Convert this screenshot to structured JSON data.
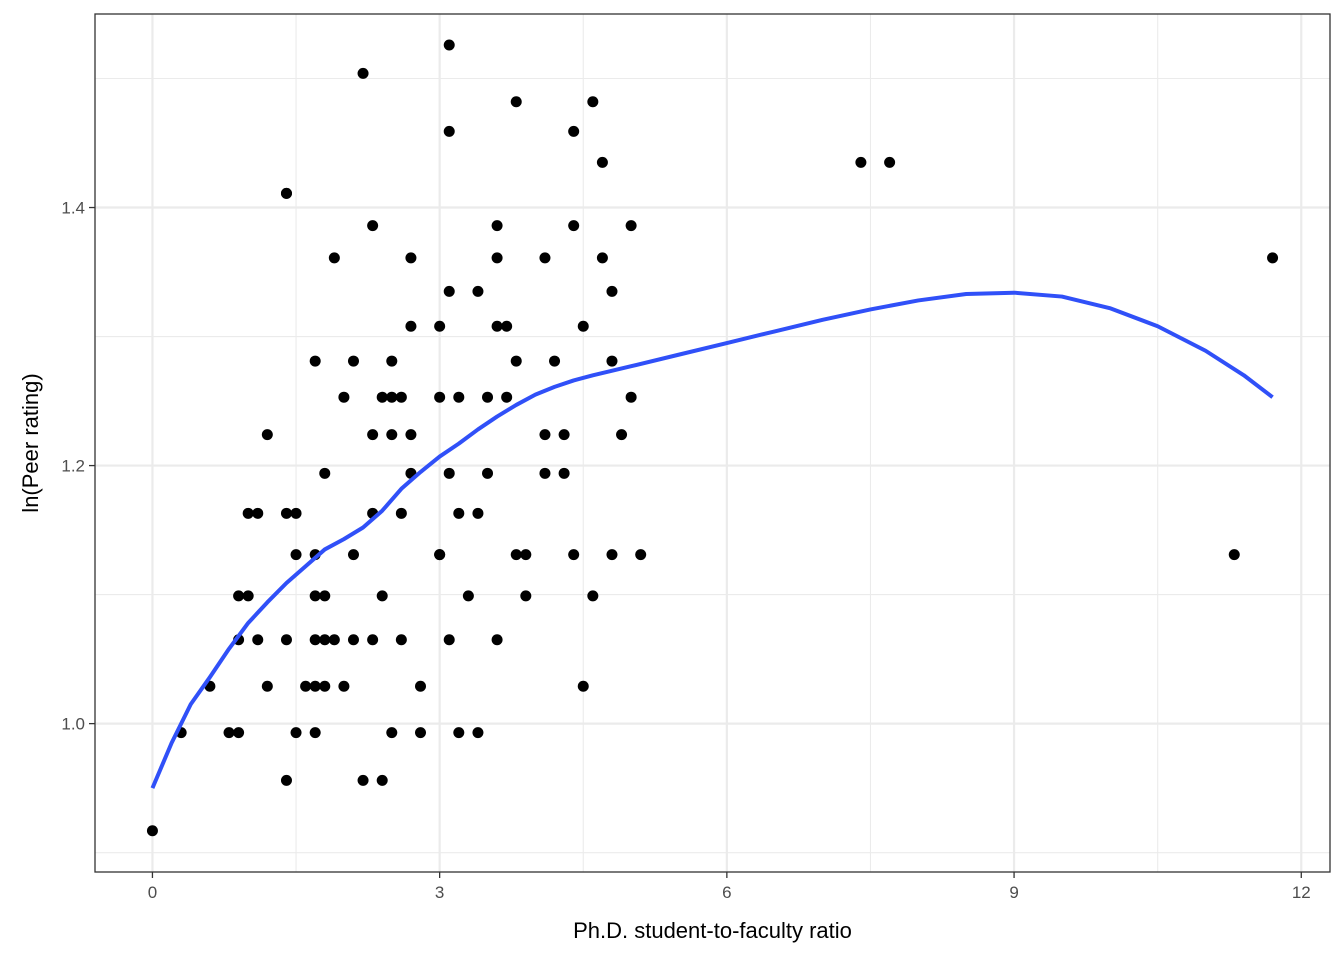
{
  "chart_data": {
    "type": "scatter",
    "title": "",
    "xlabel": "Ph.D. student-to-faculty ratio",
    "ylabel": "ln(Peer rating)",
    "xlim": [
      -0.6,
      12.3
    ],
    "ylim": [
      0.885,
      1.55
    ],
    "x_ticks": [
      0,
      3,
      6,
      9,
      12
    ],
    "x_tick_labels": [
      "0",
      "3",
      "6",
      "9",
      "12"
    ],
    "y_ticks": [
      1.0,
      1.2,
      1.4
    ],
    "y_tick_labels": [
      "1.0",
      "1.2",
      "1.4"
    ],
    "grid": true,
    "legend": "none",
    "colors": {
      "points": "#000000",
      "smooth": "#3050f8",
      "grid": "#ebebeb",
      "panel_border": "#333333"
    },
    "series": [
      {
        "type": "scatter",
        "points": [
          [
            0.0,
            0.917
          ],
          [
            0.3,
            0.993
          ],
          [
            0.6,
            1.029
          ],
          [
            0.8,
            0.993
          ],
          [
            0.9,
            0.993
          ],
          [
            0.9,
            1.065
          ],
          [
            0.9,
            1.099
          ],
          [
            1.0,
            1.099
          ],
          [
            1.0,
            1.163
          ],
          [
            1.1,
            1.163
          ],
          [
            1.1,
            1.065
          ],
          [
            1.2,
            1.029
          ],
          [
            1.2,
            1.224
          ],
          [
            1.4,
            1.411
          ],
          [
            1.4,
            1.411
          ],
          [
            1.4,
            1.163
          ],
          [
            1.4,
            1.065
          ],
          [
            1.4,
            0.956
          ],
          [
            1.5,
            1.163
          ],
          [
            1.5,
            1.131
          ],
          [
            1.5,
            0.993
          ],
          [
            1.6,
            1.029
          ],
          [
            1.7,
            1.281
          ],
          [
            1.7,
            1.131
          ],
          [
            1.7,
            1.099
          ],
          [
            1.7,
            1.065
          ],
          [
            1.7,
            1.029
          ],
          [
            1.7,
            0.993
          ],
          [
            1.8,
            1.194
          ],
          [
            1.8,
            1.099
          ],
          [
            1.8,
            1.065
          ],
          [
            1.8,
            1.029
          ],
          [
            1.9,
            1.361
          ],
          [
            1.9,
            1.065
          ],
          [
            2.0,
            1.253
          ],
          [
            2.0,
            1.029
          ],
          [
            2.1,
            1.281
          ],
          [
            2.1,
            1.131
          ],
          [
            2.1,
            1.065
          ],
          [
            2.2,
            1.504
          ],
          [
            2.2,
            0.956
          ],
          [
            2.3,
            1.386
          ],
          [
            2.3,
            1.224
          ],
          [
            2.3,
            1.163
          ],
          [
            2.3,
            1.065
          ],
          [
            2.4,
            1.253
          ],
          [
            2.4,
            1.099
          ],
          [
            2.4,
            0.956
          ],
          [
            2.5,
            1.281
          ],
          [
            2.5,
            1.253
          ],
          [
            2.5,
            1.224
          ],
          [
            2.5,
            0.993
          ],
          [
            2.6,
            1.253
          ],
          [
            2.6,
            1.163
          ],
          [
            2.6,
            1.065
          ],
          [
            2.7,
            1.361
          ],
          [
            2.7,
            1.308
          ],
          [
            2.7,
            1.224
          ],
          [
            2.7,
            1.194
          ],
          [
            2.8,
            1.029
          ],
          [
            2.8,
            0.993
          ],
          [
            3.0,
            1.308
          ],
          [
            3.0,
            1.253
          ],
          [
            3.0,
            1.131
          ],
          [
            3.0,
            1.131
          ],
          [
            3.1,
            1.526
          ],
          [
            3.1,
            1.459
          ],
          [
            3.1,
            1.335
          ],
          [
            3.1,
            1.194
          ],
          [
            3.1,
            1.065
          ],
          [
            3.2,
            1.253
          ],
          [
            3.2,
            1.163
          ],
          [
            3.2,
            0.993
          ],
          [
            3.3,
            1.099
          ],
          [
            3.4,
            1.335
          ],
          [
            3.4,
            1.163
          ],
          [
            3.4,
            0.993
          ],
          [
            3.5,
            1.253
          ],
          [
            3.5,
            1.194
          ],
          [
            3.6,
            1.386
          ],
          [
            3.6,
            1.361
          ],
          [
            3.6,
            1.308
          ],
          [
            3.6,
            1.065
          ],
          [
            3.7,
            1.308
          ],
          [
            3.7,
            1.253
          ],
          [
            3.8,
            1.482
          ],
          [
            3.8,
            1.281
          ],
          [
            3.8,
            1.131
          ],
          [
            3.9,
            1.131
          ],
          [
            3.9,
            1.099
          ],
          [
            4.1,
            1.361
          ],
          [
            4.1,
            1.224
          ],
          [
            4.1,
            1.194
          ],
          [
            4.2,
            1.281
          ],
          [
            4.3,
            1.224
          ],
          [
            4.3,
            1.194
          ],
          [
            4.4,
            1.459
          ],
          [
            4.4,
            1.386
          ],
          [
            4.4,
            1.131
          ],
          [
            4.5,
            1.308
          ],
          [
            4.5,
            1.029
          ],
          [
            4.6,
            1.482
          ],
          [
            4.6,
            1.099
          ],
          [
            4.7,
            1.435
          ],
          [
            4.7,
            1.361
          ],
          [
            4.8,
            1.335
          ],
          [
            4.8,
            1.281
          ],
          [
            4.8,
            1.131
          ],
          [
            4.9,
            1.224
          ],
          [
            5.0,
            1.386
          ],
          [
            5.0,
            1.253
          ],
          [
            5.1,
            1.131
          ],
          [
            7.4,
            1.435
          ],
          [
            7.7,
            1.435
          ],
          [
            11.3,
            1.131
          ],
          [
            11.7,
            1.361
          ]
        ]
      },
      {
        "type": "line",
        "points": [
          [
            0.0,
            0.95
          ],
          [
            0.2,
            0.985
          ],
          [
            0.4,
            1.015
          ],
          [
            0.6,
            1.036
          ],
          [
            0.8,
            1.058
          ],
          [
            1.0,
            1.078
          ],
          [
            1.2,
            1.094
          ],
          [
            1.4,
            1.109
          ],
          [
            1.6,
            1.122
          ],
          [
            1.8,
            1.135
          ],
          [
            2.0,
            1.143
          ],
          [
            2.2,
            1.152
          ],
          [
            2.4,
            1.165
          ],
          [
            2.6,
            1.182
          ],
          [
            2.8,
            1.195
          ],
          [
            3.0,
            1.207
          ],
          [
            3.2,
            1.217
          ],
          [
            3.4,
            1.228
          ],
          [
            3.6,
            1.238
          ],
          [
            3.8,
            1.247
          ],
          [
            4.0,
            1.255
          ],
          [
            4.2,
            1.261
          ],
          [
            4.4,
            1.266
          ],
          [
            4.6,
            1.27
          ],
          [
            5.0,
            1.277
          ],
          [
            5.5,
            1.286
          ],
          [
            6.0,
            1.295
          ],
          [
            6.5,
            1.304
          ],
          [
            7.0,
            1.313
          ],
          [
            7.5,
            1.321
          ],
          [
            8.0,
            1.328
          ],
          [
            8.5,
            1.333
          ],
          [
            9.0,
            1.334
          ],
          [
            9.5,
            1.331
          ],
          [
            10.0,
            1.322
          ],
          [
            10.5,
            1.308
          ],
          [
            11.0,
            1.289
          ],
          [
            11.4,
            1.27
          ],
          [
            11.7,
            1.253
          ]
        ]
      }
    ]
  }
}
